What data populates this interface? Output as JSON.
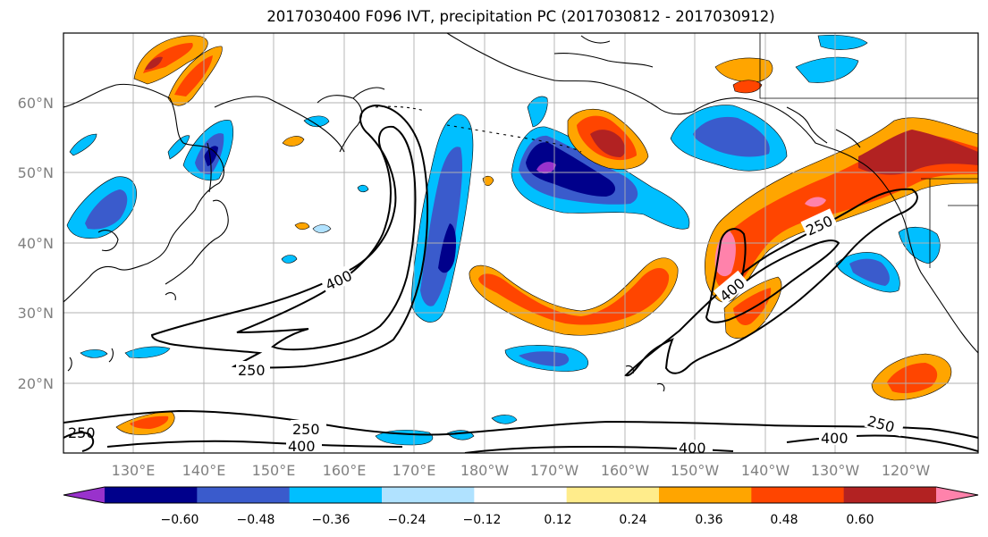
{
  "title": "2017030400 F096 IVT, precipitation PC (2017030812 - 2017030912)",
  "lat_labels": [
    "60°N",
    "50°N",
    "40°N",
    "30°N",
    "20°N"
  ],
  "lon_labels": [
    "130°E",
    "140°E",
    "150°E",
    "160°E",
    "170°E",
    "180°W",
    "170°W",
    "160°W",
    "150°W",
    "140°W",
    "130°W",
    "120°W"
  ],
  "colorbar": {
    "colors": [
      "#9932cc",
      "#00008b",
      "#3a5bcc",
      "#00bfff",
      "#b0e2ff",
      "#ffffff",
      "#ffec8b",
      "#ffa500",
      "#ff4500",
      "#b22222",
      "#ff82ab"
    ],
    "tick_labels": [
      "−0.60",
      "−0.48",
      "−0.36",
      "−0.24",
      "−0.12",
      "0.12",
      "0.24",
      "0.36",
      "0.48",
      "0.60"
    ]
  },
  "contour_labels": {
    "north_400": "400",
    "north_250": "250",
    "east_250": "250",
    "east_400": "400",
    "south_250": "250",
    "south_400": "400",
    "south_400b": "400",
    "se_250": "250",
    "se_400": "400",
    "corner": "250"
  }
}
